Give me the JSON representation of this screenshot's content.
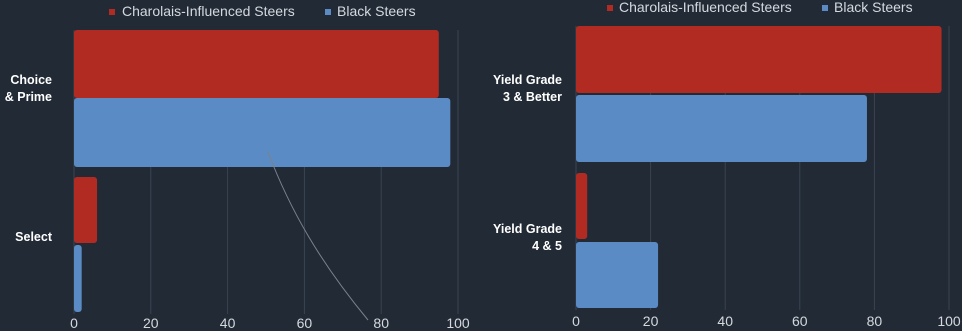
{
  "chart_data": [
    {
      "type": "bar",
      "orientation": "horizontal",
      "categories": [
        [
          "Choice",
          "& Prime"
        ],
        [
          "Select"
        ]
      ],
      "series": [
        {
          "name": "Charolais-Influenced Steers",
          "color": "#b22b22",
          "values": [
            95,
            6
          ]
        },
        {
          "name": "Black Steers",
          "color": "#5b8bc5",
          "values": [
            98,
            2
          ]
        }
      ],
      "xlim": [
        0,
        100
      ],
      "xticks": [
        0,
        20,
        40,
        60,
        80,
        100
      ],
      "grid": true,
      "legend": "top"
    },
    {
      "type": "bar",
      "orientation": "horizontal",
      "categories": [
        [
          "Yield Grade",
          "3 & Better"
        ],
        [
          "Yield Grade",
          "4 & 5"
        ]
      ],
      "series": [
        {
          "name": "Charolais-Influenced Steers",
          "color": "#b22b22",
          "values": [
            98,
            3
          ]
        },
        {
          "name": "Black Steers",
          "color": "#5b8bc5",
          "values": [
            78,
            22
          ]
        }
      ],
      "xlim": [
        0,
        100
      ],
      "xticks": [
        0,
        20,
        40,
        60,
        80,
        100
      ],
      "grid": true,
      "legend": "top"
    }
  ]
}
